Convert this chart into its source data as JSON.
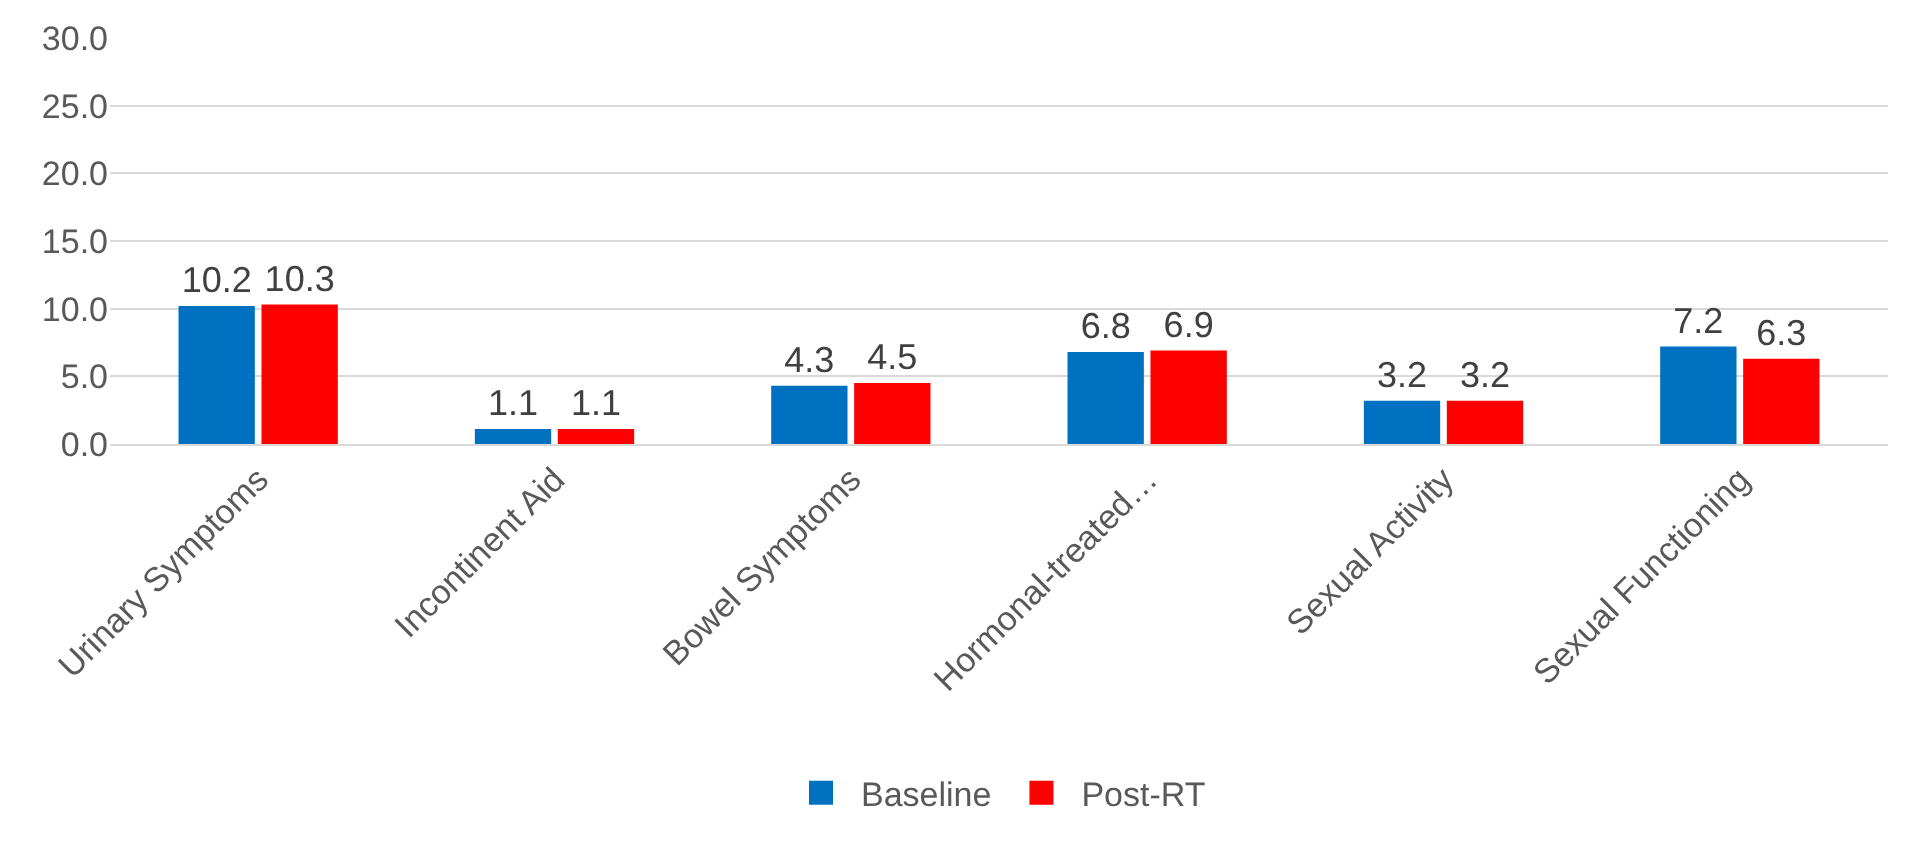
{
  "chart_data": {
    "type": "bar",
    "categories": [
      "Urinary Symptoms",
      "Incontinent Aid",
      "Bowel Symptoms",
      "Hormonal-treated…",
      "Sexual Activity",
      "Sexual Functioning"
    ],
    "series": [
      {
        "name": "Baseline",
        "color": "#0070c0",
        "values": [
          10.2,
          1.1,
          4.3,
          6.8,
          3.2,
          7.2
        ]
      },
      {
        "name": "Post-RT",
        "color": "#ff0000",
        "values": [
          10.3,
          1.1,
          4.5,
          6.9,
          3.2,
          6.3
        ]
      }
    ],
    "ylim": [
      0,
      30
    ],
    "yticks": [
      {
        "value": 0,
        "label": "0.0"
      },
      {
        "value": 5,
        "label": "5.0"
      },
      {
        "value": 10,
        "label": "10.0"
      },
      {
        "value": 15,
        "label": "15.0"
      },
      {
        "value": 20,
        "label": "20.0"
      },
      {
        "value": 25,
        "label": "25.0"
      },
      {
        "value": 30,
        "label": "30.0"
      }
    ],
    "grid": "y",
    "legend": "bottom",
    "data_labels": true
  }
}
